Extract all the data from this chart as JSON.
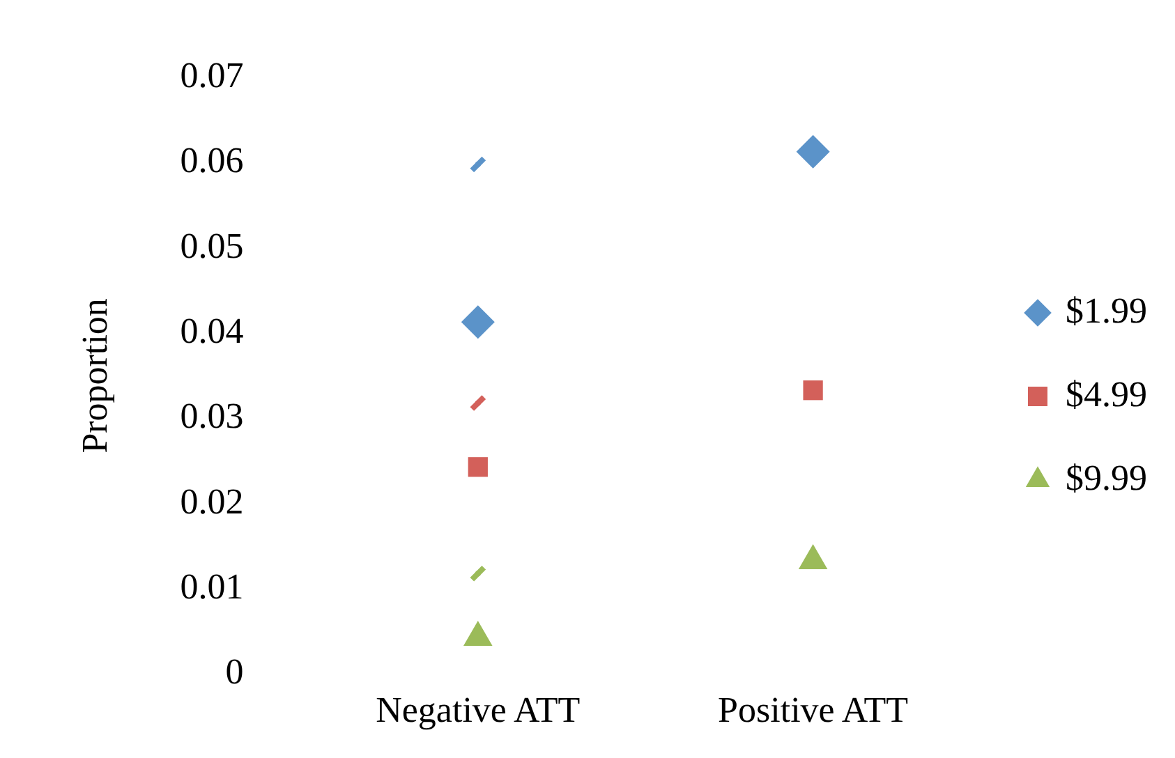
{
  "chart_data": {
    "type": "scatter",
    "ylabel": "Proportion",
    "categories": [
      "Negative ATT",
      "Positive ATT"
    ],
    "series": [
      {
        "name": "$1.99",
        "color": "#5b93c9",
        "marker": "diamond",
        "values": [
          0.0413,
          0.0613
        ]
      },
      {
        "name": "$4.99",
        "color": "#d3605a",
        "marker": "square",
        "values": [
          0.0243,
          0.0333
        ]
      },
      {
        "name": "$9.99",
        "color": "#9bbb59",
        "marker": "triangle",
        "values": [
          0.0043,
          0.0133
        ]
      },
      {
        "type": "line",
        "color": "#5b93c9",
        "marker": "cross",
        "values": [
          0.0598,
          null
        ]
      },
      {
        "type": "line",
        "color": "#d3605a",
        "marker": "cross",
        "values": [
          0.0318,
          null
        ]
      },
      {
        "type": "line",
        "color": "#9bbb59",
        "marker": "cross",
        "values": [
          0.0118,
          null
        ]
      }
    ],
    "ylim": [
      0,
      0.07
    ],
    "yticks": [
      0,
      0.01,
      0.02,
      0.03,
      0.04,
      0.05,
      0.06,
      0.07
    ],
    "grid": false,
    "legend": "right"
  }
}
